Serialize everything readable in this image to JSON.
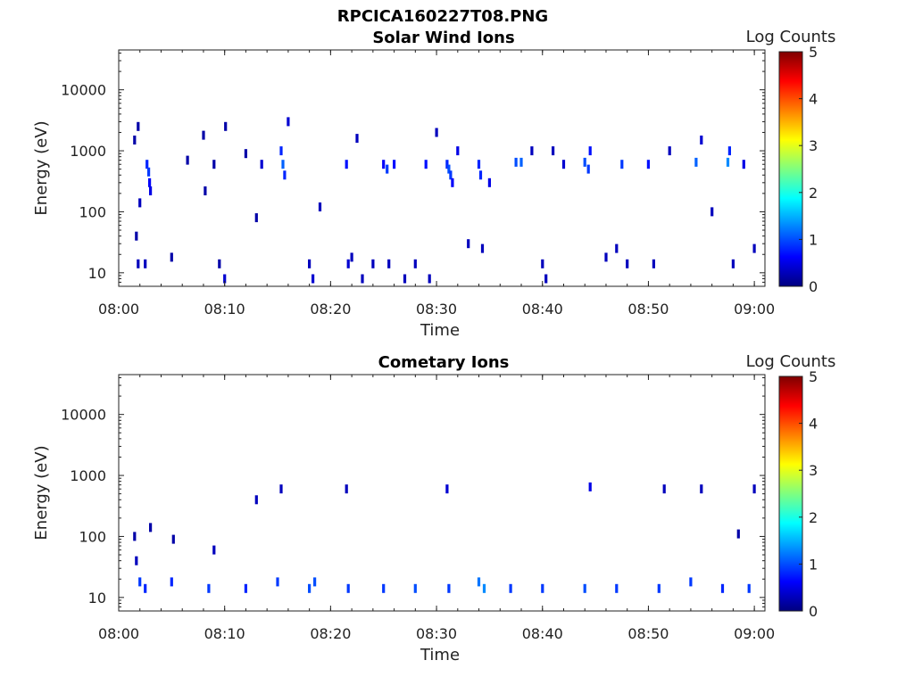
{
  "figure_title": "RPCICA160227T08.PNG",
  "colorbar": {
    "label": "Log Counts",
    "ticks": [
      "0",
      "1",
      "2",
      "3",
      "4",
      "5"
    ],
    "range": [
      0,
      5
    ]
  },
  "chart_data": [
    {
      "type": "heatmap",
      "title": "Solar Wind Ions",
      "xlabel": "Time",
      "ylabel": "Energy (eV)",
      "xlim": [
        "08:00",
        "09:01"
      ],
      "xticks": [
        "08:00",
        "08:10",
        "08:20",
        "08:30",
        "08:40",
        "08:50",
        "09:00"
      ],
      "ylim": [
        6,
        45000
      ],
      "yscale": "log",
      "yticks": [
        "10",
        "100",
        "1000",
        "10000"
      ],
      "colorbar_label": "Log Counts",
      "cells": [
        {
          "t": "08:02:40",
          "e": 600,
          "v": 0.8
        },
        {
          "t": "08:02:50",
          "e": 450,
          "v": 0.9
        },
        {
          "t": "08:02:55",
          "e": 300,
          "v": 0.6
        },
        {
          "t": "08:03:00",
          "e": 220,
          "v": 0.5
        },
        {
          "t": "08:01:30",
          "e": 1500,
          "v": 0.2
        },
        {
          "t": "08:01:50",
          "e": 2500,
          "v": 0.2
        },
        {
          "t": "08:02:00",
          "e": 140,
          "v": 0.3
        },
        {
          "t": "08:01:40",
          "e": 40,
          "v": 0.2
        },
        {
          "t": "08:01:50",
          "e": 14,
          "v": 0.3
        },
        {
          "t": "08:02:30",
          "e": 14,
          "v": 0.3
        },
        {
          "t": "08:05:00",
          "e": 18,
          "v": 0.2
        },
        {
          "t": "08:06:30",
          "e": 700,
          "v": 0.2
        },
        {
          "t": "08:08:00",
          "e": 1800,
          "v": 0.2
        },
        {
          "t": "08:08:10",
          "e": 220,
          "v": 0.2
        },
        {
          "t": "08:09:00",
          "e": 600,
          "v": 0.2
        },
        {
          "t": "08:09:30",
          "e": 14,
          "v": 0.2
        },
        {
          "t": "08:10:00",
          "e": 8,
          "v": 0.4
        },
        {
          "t": "08:10:05",
          "e": 2500,
          "v": 0.2
        },
        {
          "t": "08:12:00",
          "e": 900,
          "v": 0.2
        },
        {
          "t": "08:13:00",
          "e": 80,
          "v": 0.2
        },
        {
          "t": "08:13:30",
          "e": 600,
          "v": 0.4
        },
        {
          "t": "08:15:20",
          "e": 1000,
          "v": 0.8
        },
        {
          "t": "08:15:30",
          "e": 600,
          "v": 1.1
        },
        {
          "t": "08:15:40",
          "e": 400,
          "v": 0.8
        },
        {
          "t": "08:16:00",
          "e": 3000,
          "v": 0.4
        },
        {
          "t": "08:18:00",
          "e": 14,
          "v": 0.3
        },
        {
          "t": "08:18:20",
          "e": 8,
          "v": 0.4
        },
        {
          "t": "08:19:00",
          "e": 120,
          "v": 0.3
        },
        {
          "t": "08:21:30",
          "e": 600,
          "v": 0.7
        },
        {
          "t": "08:21:40",
          "e": 14,
          "v": 0.4
        },
        {
          "t": "08:22:00",
          "e": 18,
          "v": 0.3
        },
        {
          "t": "08:22:30",
          "e": 1600,
          "v": 0.3
        },
        {
          "t": "08:23:00",
          "e": 8,
          "v": 0.3
        },
        {
          "t": "08:24:00",
          "e": 14,
          "v": 0.3
        },
        {
          "t": "08:25:00",
          "e": 600,
          "v": 0.6
        },
        {
          "t": "08:25:20",
          "e": 500,
          "v": 0.9
        },
        {
          "t": "08:25:30",
          "e": 14,
          "v": 0.3
        },
        {
          "t": "08:26:00",
          "e": 600,
          "v": 0.7
        },
        {
          "t": "08:27:00",
          "e": 8,
          "v": 0.3
        },
        {
          "t": "08:28:00",
          "e": 14,
          "v": 0.3
        },
        {
          "t": "08:29:00",
          "e": 600,
          "v": 0.7
        },
        {
          "t": "08:29:20",
          "e": 8,
          "v": 0.3
        },
        {
          "t": "08:30:00",
          "e": 2000,
          "v": 0.3
        },
        {
          "t": "08:31:00",
          "e": 600,
          "v": 0.8
        },
        {
          "t": "08:31:10",
          "e": 500,
          "v": 1.0
        },
        {
          "t": "08:31:20",
          "e": 400,
          "v": 0.9
        },
        {
          "t": "08:31:30",
          "e": 300,
          "v": 0.6
        },
        {
          "t": "08:32:00",
          "e": 1000,
          "v": 0.5
        },
        {
          "t": "08:33:00",
          "e": 30,
          "v": 0.3
        },
        {
          "t": "08:34:00",
          "e": 600,
          "v": 0.8
        },
        {
          "t": "08:34:10",
          "e": 400,
          "v": 0.8
        },
        {
          "t": "08:34:20",
          "e": 25,
          "v": 0.3
        },
        {
          "t": "08:35:00",
          "e": 300,
          "v": 0.5
        },
        {
          "t": "08:37:30",
          "e": 650,
          "v": 1.0
        },
        {
          "t": "08:38:00",
          "e": 650,
          "v": 1.1
        },
        {
          "t": "08:39:00",
          "e": 1000,
          "v": 0.3
        },
        {
          "t": "08:40:00",
          "e": 14,
          "v": 0.3
        },
        {
          "t": "08:40:20",
          "e": 8,
          "v": 0.3
        },
        {
          "t": "08:41:00",
          "e": 1000,
          "v": 0.3
        },
        {
          "t": "08:42:00",
          "e": 600,
          "v": 0.4
        },
        {
          "t": "08:44:00",
          "e": 650,
          "v": 1.0
        },
        {
          "t": "08:44:20",
          "e": 500,
          "v": 0.9
        },
        {
          "t": "08:44:30",
          "e": 1000,
          "v": 0.7
        },
        {
          "t": "08:46:00",
          "e": 18,
          "v": 0.3
        },
        {
          "t": "08:47:00",
          "e": 25,
          "v": 0.3
        },
        {
          "t": "08:47:30",
          "e": 600,
          "v": 0.9
        },
        {
          "t": "08:48:00",
          "e": 14,
          "v": 0.3
        },
        {
          "t": "08:50:00",
          "e": 600,
          "v": 0.7
        },
        {
          "t": "08:50:30",
          "e": 14,
          "v": 0.3
        },
        {
          "t": "08:52:00",
          "e": 1000,
          "v": 0.3
        },
        {
          "t": "08:54:30",
          "e": 650,
          "v": 1.1
        },
        {
          "t": "08:55:00",
          "e": 1500,
          "v": 0.4
        },
        {
          "t": "08:56:00",
          "e": 100,
          "v": 0.3
        },
        {
          "t": "08:57:30",
          "e": 650,
          "v": 1.3
        },
        {
          "t": "08:57:40",
          "e": 1000,
          "v": 0.8
        },
        {
          "t": "08:58:00",
          "e": 14,
          "v": 0.3
        },
        {
          "t": "08:59:00",
          "e": 600,
          "v": 0.5
        },
        {
          "t": "09:00:00",
          "e": 25,
          "v": 0.3
        }
      ]
    },
    {
      "type": "heatmap",
      "title": "Cometary Ions",
      "xlabel": "Time",
      "ylabel": "Energy (eV)",
      "xlim": [
        "08:00",
        "09:01"
      ],
      "xticks": [
        "08:00",
        "08:10",
        "08:20",
        "08:30",
        "08:40",
        "08:50",
        "09:00"
      ],
      "ylim": [
        6,
        45000
      ],
      "yscale": "log",
      "yticks": [
        "10",
        "100",
        "1000",
        "10000"
      ],
      "colorbar_label": "Log Counts",
      "cells": [
        {
          "t": "08:01:30",
          "e": 100,
          "v": 0.2
        },
        {
          "t": "08:01:40",
          "e": 40,
          "v": 0.3
        },
        {
          "t": "08:02:00",
          "e": 18,
          "v": 0.9
        },
        {
          "t": "08:02:30",
          "e": 14,
          "v": 0.8
        },
        {
          "t": "08:03:00",
          "e": 140,
          "v": 0.2
        },
        {
          "t": "08:05:00",
          "e": 18,
          "v": 0.8
        },
        {
          "t": "08:05:10",
          "e": 90,
          "v": 0.2
        },
        {
          "t": "08:08:30",
          "e": 14,
          "v": 0.9
        },
        {
          "t": "08:09:00",
          "e": 60,
          "v": 0.3
        },
        {
          "t": "08:12:00",
          "e": 14,
          "v": 0.8
        },
        {
          "t": "08:13:00",
          "e": 400,
          "v": 0.3
        },
        {
          "t": "08:15:00",
          "e": 18,
          "v": 0.9
        },
        {
          "t": "08:15:20",
          "e": 600,
          "v": 0.3
        },
        {
          "t": "08:18:00",
          "e": 14,
          "v": 1.0
        },
        {
          "t": "08:18:30",
          "e": 18,
          "v": 1.0
        },
        {
          "t": "08:21:30",
          "e": 600,
          "v": 0.3
        },
        {
          "t": "08:21:40",
          "e": 14,
          "v": 0.9
        },
        {
          "t": "08:25:00",
          "e": 14,
          "v": 0.9
        },
        {
          "t": "08:28:00",
          "e": 14,
          "v": 1.0
        },
        {
          "t": "08:31:00",
          "e": 600,
          "v": 0.4
        },
        {
          "t": "08:31:10",
          "e": 14,
          "v": 0.9
        },
        {
          "t": "08:34:00",
          "e": 18,
          "v": 1.2
        },
        {
          "t": "08:34:30",
          "e": 14,
          "v": 1.3
        },
        {
          "t": "08:37:00",
          "e": 14,
          "v": 0.9
        },
        {
          "t": "08:40:00",
          "e": 14,
          "v": 0.9
        },
        {
          "t": "08:44:00",
          "e": 14,
          "v": 1.0
        },
        {
          "t": "08:44:30",
          "e": 650,
          "v": 0.5
        },
        {
          "t": "08:47:00",
          "e": 14,
          "v": 0.9
        },
        {
          "t": "08:51:00",
          "e": 14,
          "v": 0.9
        },
        {
          "t": "08:51:30",
          "e": 600,
          "v": 0.3
        },
        {
          "t": "08:54:00",
          "e": 18,
          "v": 0.9
        },
        {
          "t": "08:55:00",
          "e": 600,
          "v": 0.3
        },
        {
          "t": "08:57:00",
          "e": 14,
          "v": 0.8
        },
        {
          "t": "08:58:30",
          "e": 110,
          "v": 0.2
        },
        {
          "t": "08:59:30",
          "e": 14,
          "v": 0.9
        },
        {
          "t": "09:00:00",
          "e": 600,
          "v": 0.3
        }
      ]
    }
  ]
}
